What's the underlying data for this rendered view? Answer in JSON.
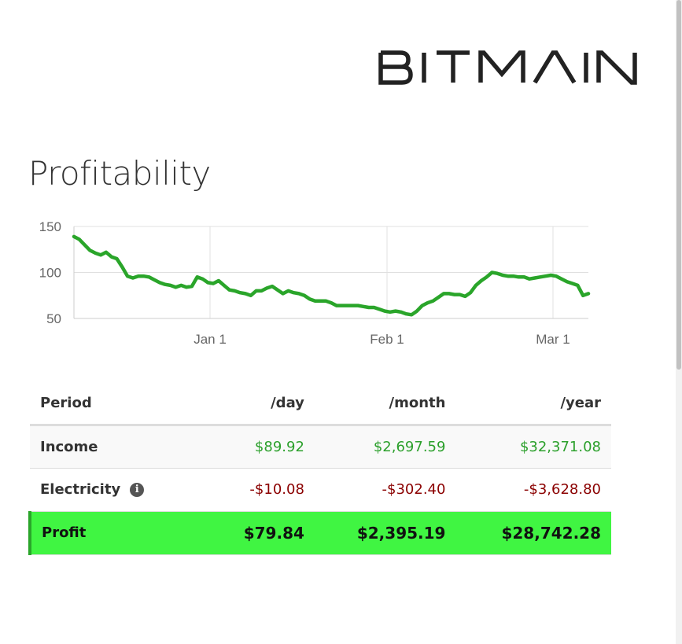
{
  "brand": {
    "name": "BITMAIN"
  },
  "page": {
    "title": "Profitability"
  },
  "colors": {
    "line": "#2aa52a",
    "income": "#2ca02c",
    "electricity": "#8b0000",
    "profit_bg": "#40f542"
  },
  "chart_data": {
    "type": "line",
    "title": "",
    "xlabel": "",
    "ylabel": "",
    "x_ticks": [
      "Jan 1",
      "Feb 1",
      "Mar 1"
    ],
    "y_ticks": [
      150,
      100,
      50
    ],
    "ylim": [
      50,
      150
    ],
    "grid": true,
    "legend": "none",
    "series": [
      {
        "values": [
          139,
          136,
          130,
          124,
          121,
          119,
          122,
          117,
          115,
          106,
          96,
          94,
          96,
          96,
          95,
          92,
          89,
          87,
          86,
          84,
          86,
          84,
          85,
          95,
          93,
          89,
          88,
          91,
          86,
          81,
          80,
          78,
          77,
          75,
          80,
          80,
          83,
          85,
          81,
          77,
          80,
          78,
          77,
          75,
          71,
          69,
          69,
          69,
          67,
          64,
          64,
          64,
          64,
          64,
          63,
          62,
          62,
          60,
          58,
          57,
          58,
          57,
          55,
          54,
          58,
          64,
          67,
          69,
          73,
          77,
          77,
          76,
          76,
          74,
          78,
          86,
          91,
          95,
          100,
          99,
          97,
          96,
          96,
          95,
          95,
          93,
          94,
          95,
          96,
          97,
          96,
          93,
          90,
          88,
          86,
          75,
          77
        ]
      }
    ]
  },
  "table": {
    "headers": [
      "Period",
      "/day",
      "/month",
      "/year"
    ],
    "rows": [
      {
        "label": "Income",
        "day": "$89.92",
        "month": "$2,697.59",
        "year": "$32,371.08"
      },
      {
        "label": "Electricity",
        "info_icon": "info-icon",
        "day": "-$10.08",
        "month": "-$302.40",
        "year": "-$3,628.80"
      },
      {
        "label": "Profit",
        "day": "$79.84",
        "month": "$2,395.19",
        "year": "$28,742.28"
      }
    ]
  }
}
